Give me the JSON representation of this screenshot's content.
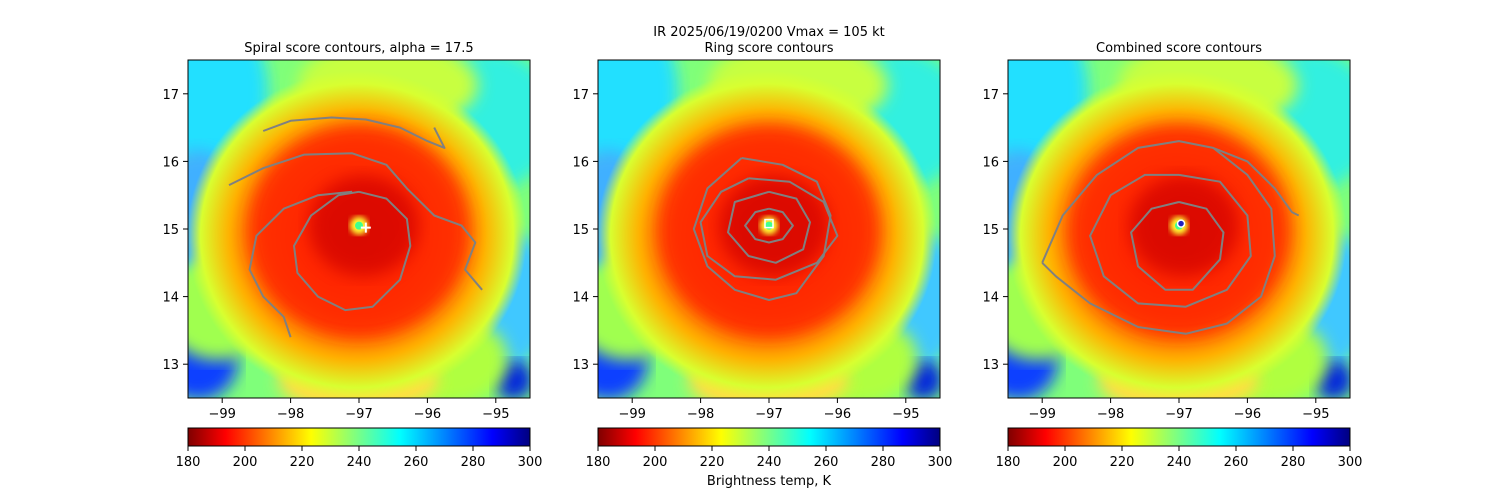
{
  "figure": {
    "suptitle_line1": "IR  2025/06/19/0200    Vmax = 105 kt"
  },
  "colors": {
    "contour": "#808080",
    "frame": "#000000",
    "cold": "#00007f",
    "warm": "#7f0000"
  },
  "colorbar": {
    "label": "Brightness temp, K",
    "min": 180,
    "max": 300,
    "ticks": [
      "180",
      "200",
      "220",
      "240",
      "260",
      "280",
      "300"
    ],
    "tick_values": [
      180,
      200,
      220,
      240,
      260,
      280,
      300
    ],
    "colormap": "jet"
  },
  "chart_data": [
    {
      "type": "heatmap",
      "title": "Spiral score contours, alpha = 17.5",
      "xlim": [
        -99.5,
        -94.5
      ],
      "ylim": [
        12.5,
        17.5
      ],
      "xticks": [
        -99,
        -98,
        -97,
        -96,
        -95
      ],
      "xtick_labels": [
        "−99",
        "−98",
        "−97",
        "−96",
        "−95"
      ],
      "yticks": [
        13,
        14,
        15,
        16,
        17
      ],
      "ytick_labels": [
        "13",
        "14",
        "15",
        "16",
        "17"
      ],
      "center": {
        "lon": -97.0,
        "lat": 15.05
      },
      "marker": {
        "type": "plus",
        "lon": -96.9,
        "lat": 15.02
      },
      "contours": [
        {
          "name": "inner-contour",
          "lon": [
            -97.0,
            -96.6,
            -96.3,
            -96.25,
            -96.4,
            -96.8,
            -97.2,
            -97.6,
            -97.9,
            -97.95,
            -97.7,
            -97.3,
            -97.0
          ],
          "lat": [
            15.55,
            15.45,
            15.15,
            14.75,
            14.25,
            13.85,
            13.8,
            14.0,
            14.35,
            14.75,
            15.2,
            15.5,
            15.55
          ]
        },
        {
          "name": "outer-spiral-contour",
          "lon": [
            -98.9,
            -98.4,
            -97.8,
            -97.1,
            -96.6,
            -96.3,
            -95.9,
            -95.5,
            -95.3,
            -95.45,
            -95.2
          ],
          "lat": [
            15.65,
            15.9,
            16.1,
            16.12,
            15.95,
            15.6,
            15.2,
            15.05,
            14.8,
            14.4,
            14.1
          ]
        },
        {
          "name": "left-spiral-contour",
          "lon": [
            -97.1,
            -97.6,
            -98.1,
            -98.5,
            -98.6,
            -98.4,
            -98.1,
            -98.0
          ],
          "lat": [
            15.55,
            15.5,
            15.3,
            14.9,
            14.4,
            14.0,
            13.7,
            13.4
          ]
        },
        {
          "name": "top-arc-contour",
          "lon": [
            -98.4,
            -98.0,
            -97.4,
            -96.9,
            -96.4,
            -96.0,
            -95.75,
            -95.9
          ],
          "lat": [
            16.45,
            16.6,
            16.65,
            16.62,
            16.5,
            16.3,
            16.2,
            16.5
          ]
        }
      ]
    },
    {
      "type": "heatmap",
      "title": "Ring score contours",
      "xlim": [
        -99.5,
        -94.5
      ],
      "ylim": [
        12.5,
        17.5
      ],
      "xticks": [
        -99,
        -98,
        -97,
        -96,
        -95
      ],
      "xtick_labels": [
        "−99",
        "−98",
        "−97",
        "−96",
        "−95"
      ],
      "yticks": [
        13,
        14,
        15,
        16,
        17
      ],
      "ytick_labels": [
        "13",
        "14",
        "15",
        "16",
        "17"
      ],
      "center": {
        "lon": -97.0,
        "lat": 15.05
      },
      "marker": {
        "type": "square",
        "lon": -97.0,
        "lat": 15.08
      },
      "contours": [
        {
          "name": "ring-contour-1",
          "lon": [
            -97.0,
            -96.8,
            -96.65,
            -96.8,
            -97.0,
            -97.2,
            -97.35,
            -97.2,
            -97.0
          ],
          "lat": [
            15.3,
            15.25,
            15.05,
            14.85,
            14.8,
            14.85,
            15.05,
            15.25,
            15.3
          ]
        },
        {
          "name": "ring-contour-2",
          "lon": [
            -97.0,
            -96.6,
            -96.4,
            -96.5,
            -96.9,
            -97.3,
            -97.6,
            -97.5,
            -97.0
          ],
          "lat": [
            15.55,
            15.45,
            15.1,
            14.7,
            14.5,
            14.6,
            14.95,
            15.4,
            15.55
          ]
        },
        {
          "name": "ring-contour-3",
          "lon": [
            -97.3,
            -96.7,
            -96.2,
            -96.0,
            -96.3,
            -96.9,
            -97.5,
            -97.9,
            -98.0,
            -97.7,
            -97.3
          ],
          "lat": [
            15.75,
            15.7,
            15.4,
            14.9,
            14.5,
            14.25,
            14.3,
            14.6,
            15.1,
            15.55,
            15.75
          ]
        },
        {
          "name": "ring-contour-4",
          "lon": [
            -97.4,
            -96.8,
            -96.3,
            -96.1,
            -96.2,
            -96.6,
            -97.0,
            -97.5,
            -97.9,
            -98.1,
            -97.9,
            -97.4
          ],
          "lat": [
            16.05,
            15.95,
            15.7,
            15.2,
            14.6,
            14.05,
            13.95,
            14.1,
            14.45,
            15.0,
            15.6,
            16.05
          ]
        }
      ]
    },
    {
      "type": "heatmap",
      "title": "Combined score contours",
      "xlim": [
        -99.5,
        -94.5
      ],
      "ylim": [
        12.5,
        17.5
      ],
      "xticks": [
        -99,
        -98,
        -97,
        -96,
        -95
      ],
      "xtick_labels": [
        "−99",
        "−98",
        "−97",
        "−96",
        "−95"
      ],
      "yticks": [
        13,
        14,
        15,
        16,
        17
      ],
      "ytick_labels": [
        "13",
        "14",
        "15",
        "16",
        "17"
      ],
      "center": {
        "lon": -97.0,
        "lat": 15.05
      },
      "marker": {
        "type": "circle",
        "lon": -96.97,
        "lat": 15.08
      },
      "contours": [
        {
          "name": "inner-contour",
          "lon": [
            -97.0,
            -96.6,
            -96.35,
            -96.4,
            -96.8,
            -97.2,
            -97.6,
            -97.7,
            -97.4,
            -97.0
          ],
          "lat": [
            15.4,
            15.3,
            14.95,
            14.55,
            14.1,
            14.1,
            14.45,
            14.95,
            15.3,
            15.4
          ]
        },
        {
          "name": "middle-contour",
          "lon": [
            -97.0,
            -96.4,
            -96.0,
            -95.95,
            -96.3,
            -96.9,
            -97.6,
            -98.1,
            -98.3,
            -98.0,
            -97.5,
            -97.0
          ],
          "lat": [
            15.8,
            15.7,
            15.2,
            14.6,
            14.1,
            13.85,
            13.9,
            14.3,
            14.9,
            15.5,
            15.8,
            15.8
          ]
        },
        {
          "name": "outer-contour",
          "lon": [
            -99.0,
            -98.7,
            -98.2,
            -97.6,
            -97.0,
            -96.5,
            -96.0,
            -95.65,
            -95.6,
            -95.8,
            -96.3,
            -96.9,
            -97.6,
            -98.3,
            -98.8,
            -99.0
          ],
          "lat": [
            14.5,
            15.2,
            15.8,
            16.2,
            16.3,
            16.2,
            15.8,
            15.3,
            14.6,
            14.0,
            13.6,
            13.45,
            13.55,
            13.9,
            14.3,
            14.5
          ]
        },
        {
          "name": "tail-contour",
          "lon": [
            -96.5,
            -96.0,
            -95.6,
            -95.35,
            -95.25
          ],
          "lat": [
            16.2,
            16.0,
            15.6,
            15.25,
            15.2
          ]
        }
      ]
    }
  ]
}
